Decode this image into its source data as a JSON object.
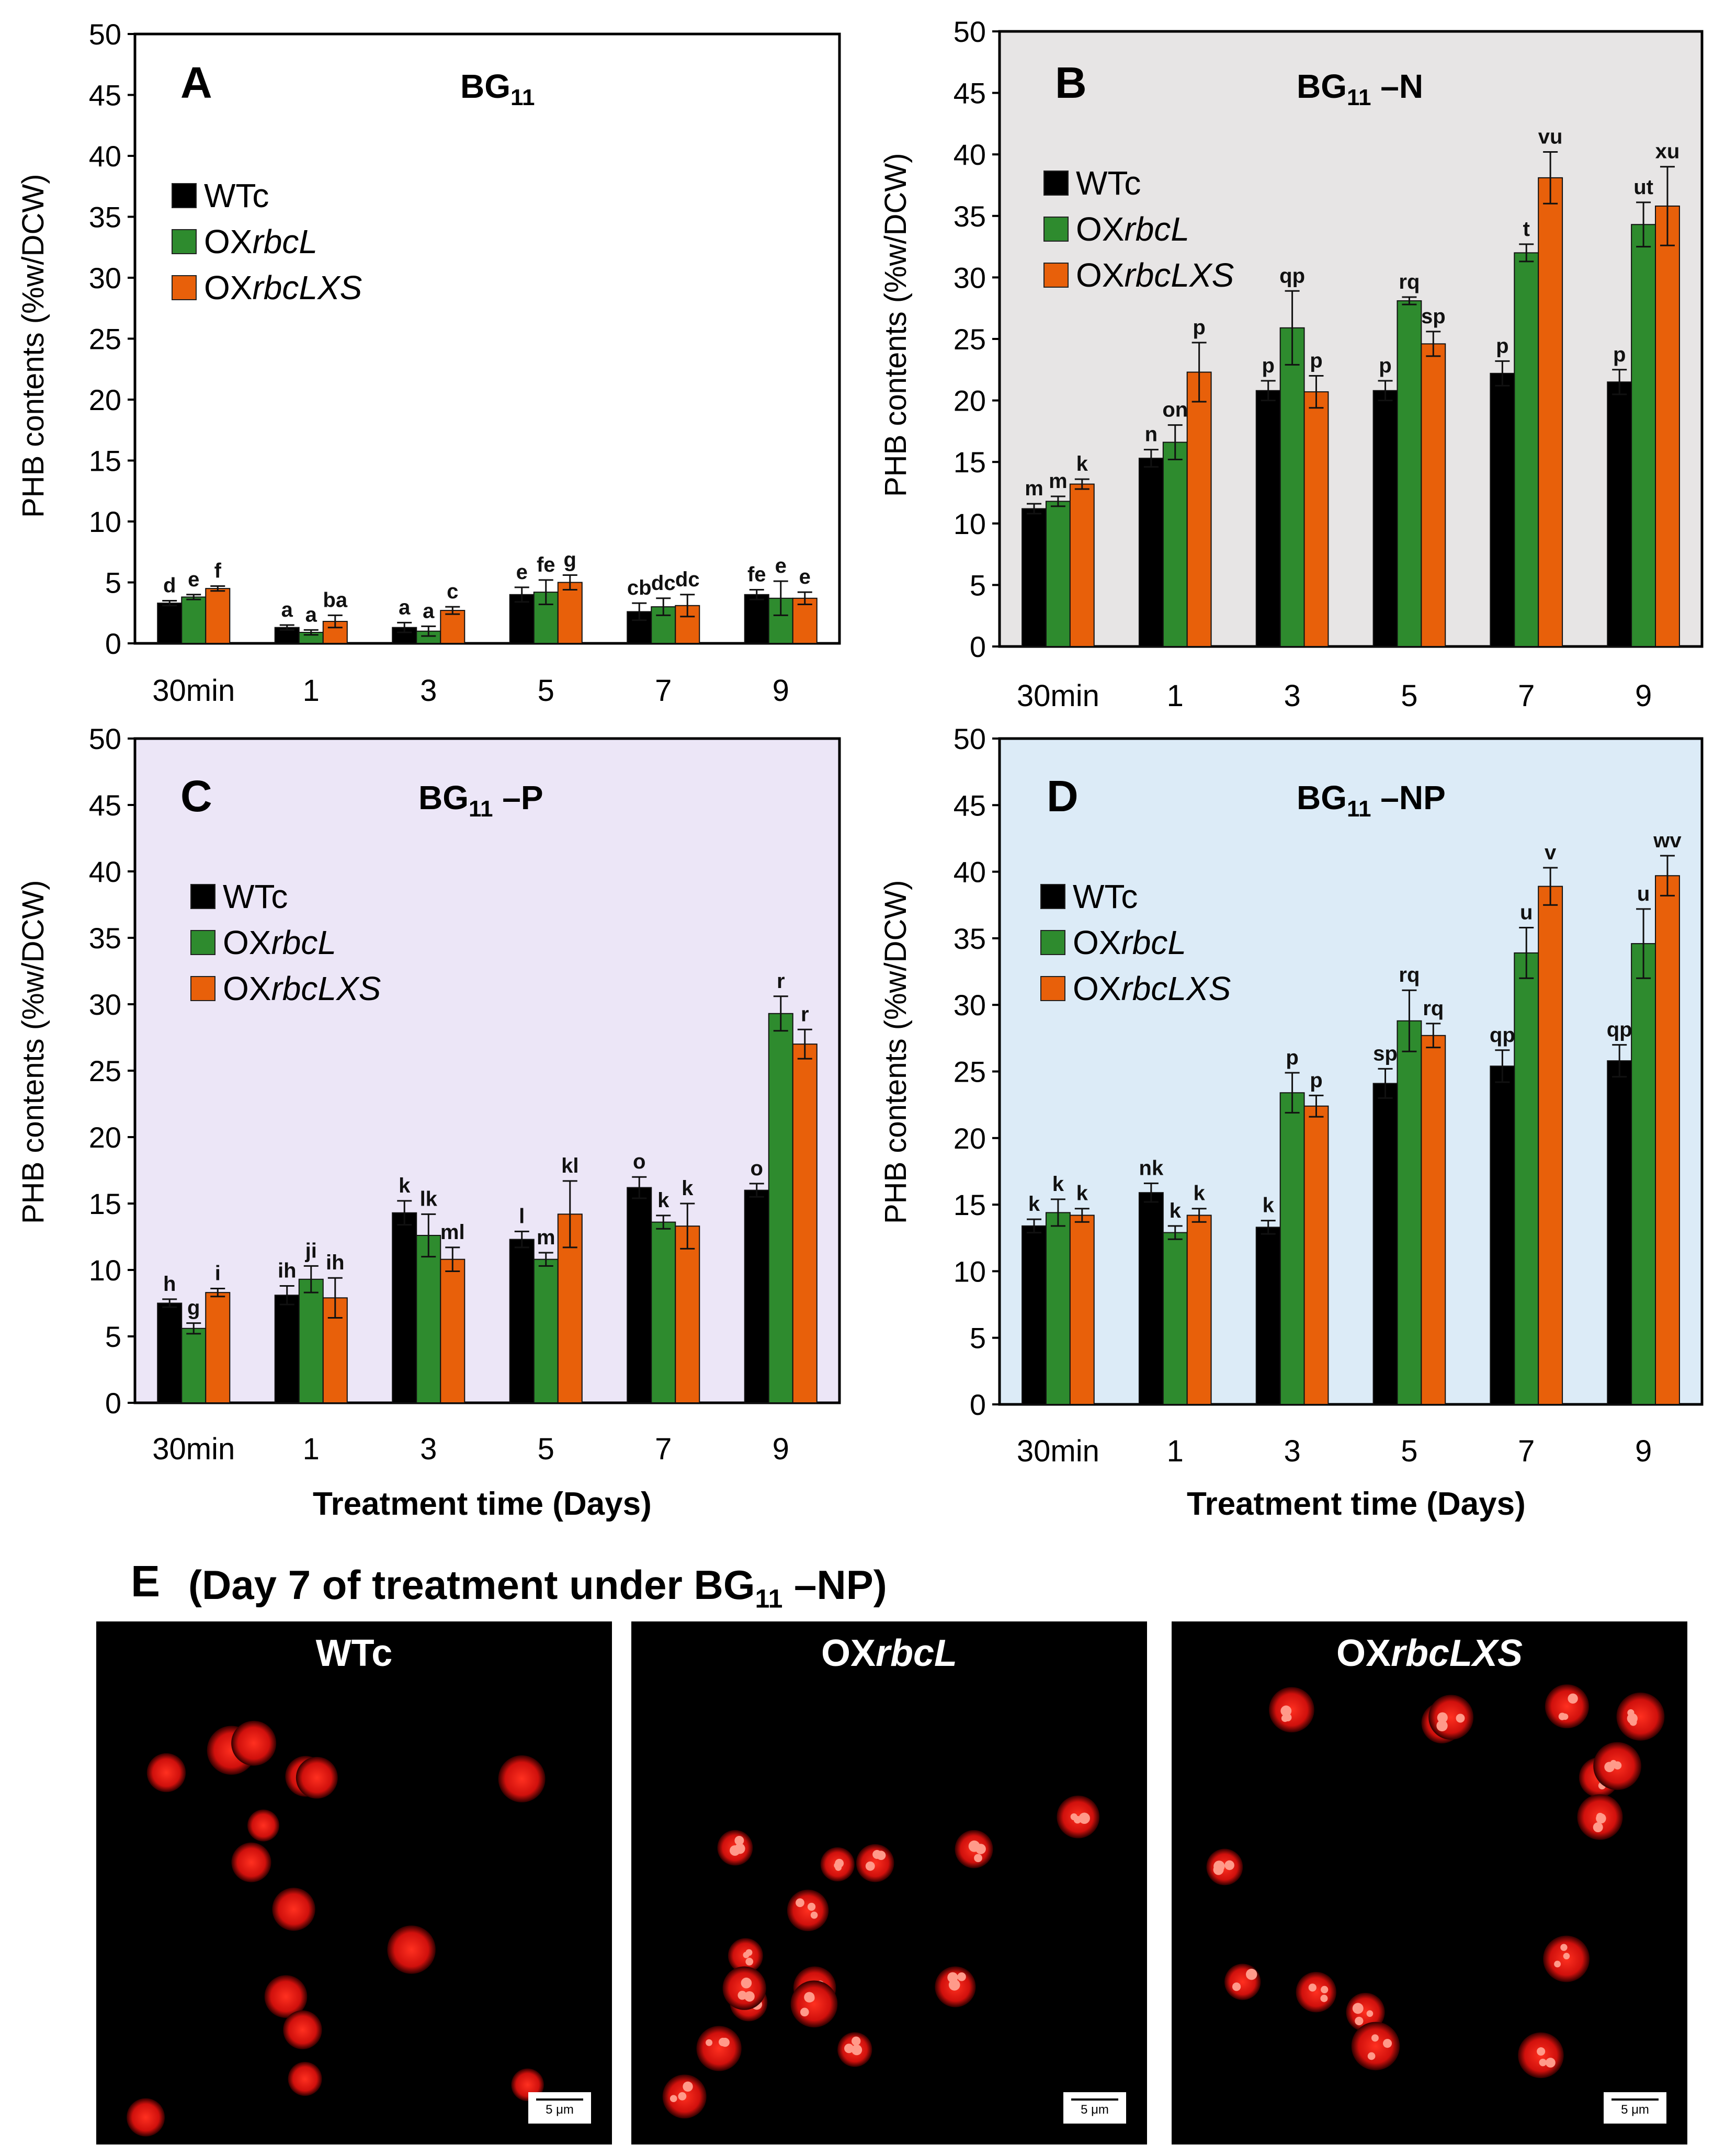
{
  "colors": {
    "WTc": "#000000",
    "OXrbcL": "#2e8b2e",
    "OXrbcLXS": "#e8600a"
  },
  "legend": {
    "wtc": "WTc",
    "oxrbcl_prefix": "OX",
    "oxrbcl_italic": "rbcL",
    "oxrbclxs_prefix": "OX",
    "oxrbclxs_italic": "rbcLXS"
  },
  "common": {
    "ylabel": "PHB contents (%w/DCW)",
    "xlabel": "Treatment time (Days)",
    "categories": [
      "30min",
      "1",
      "3",
      "5",
      "7",
      "9"
    ],
    "yticks": [
      "0",
      "5",
      "10",
      "15",
      "20",
      "25",
      "30",
      "35",
      "40",
      "45",
      "50"
    ]
  },
  "chart_data": [
    {
      "panel": "A",
      "type": "bar",
      "title_main": "BG",
      "title_sub": "11",
      "title_suffix": "",
      "background": "#ffffff",
      "ylim": [
        0,
        50
      ],
      "categories": [
        "30min",
        "1",
        "3",
        "5",
        "7",
        "9"
      ],
      "series": [
        {
          "name": "WTc",
          "values": [
            3.3,
            1.3,
            1.3,
            4.0,
            2.6,
            4.0
          ],
          "errors": [
            0.2,
            0.2,
            0.4,
            0.6,
            0.7,
            0.4
          ],
          "labels": [
            "d",
            "a",
            "a",
            "e",
            "cb",
            "fe"
          ]
        },
        {
          "name": "OXrbcL",
          "values": [
            3.8,
            0.9,
            1.0,
            4.2,
            3.0,
            3.7
          ],
          "errors": [
            0.2,
            0.2,
            0.4,
            1.0,
            0.7,
            1.4
          ],
          "labels": [
            "e",
            "a",
            "a",
            "fe",
            "dc",
            "e"
          ]
        },
        {
          "name": "OXrbcLXS",
          "values": [
            4.5,
            1.8,
            2.7,
            5.0,
            3.1,
            3.7
          ],
          "errors": [
            0.2,
            0.5,
            0.3,
            0.6,
            0.9,
            0.5
          ],
          "labels": [
            "f",
            "ba",
            "c",
            "g",
            "dc",
            "e"
          ]
        }
      ]
    },
    {
      "panel": "B",
      "type": "bar",
      "title_main": "BG",
      "title_sub": "11",
      "title_suffix": " –N",
      "background": "#e7e5e5",
      "ylim": [
        0,
        50
      ],
      "categories": [
        "30min",
        "1",
        "3",
        "5",
        "7",
        "9"
      ],
      "series": [
        {
          "name": "WTc",
          "values": [
            11.2,
            15.3,
            20.8,
            20.8,
            22.2,
            21.5
          ],
          "errors": [
            0.4,
            0.7,
            0.8,
            0.8,
            1.0,
            1.0
          ],
          "labels": [
            "m",
            "n",
            "p",
            "p",
            "p",
            "p"
          ]
        },
        {
          "name": "OXrbcL",
          "values": [
            11.8,
            16.6,
            25.9,
            28.1,
            32.0,
            34.3
          ],
          "errors": [
            0.4,
            1.4,
            3.0,
            0.3,
            0.7,
            1.8
          ],
          "labels": [
            "m",
            "on",
            "qp",
            "rq",
            "t",
            "ut"
          ]
        },
        {
          "name": "OXrbcLXS",
          "values": [
            13.2,
            22.3,
            20.7,
            24.6,
            38.1,
            35.8
          ],
          "errors": [
            0.4,
            2.4,
            1.3,
            1.0,
            2.1,
            3.2
          ],
          "labels": [
            "k",
            "p",
            "p",
            "sp",
            "vu",
            "xu"
          ]
        }
      ]
    },
    {
      "panel": "C",
      "type": "bar",
      "title_main": "BG",
      "title_sub": "11",
      "title_suffix": " –P",
      "background": "#ece6f7",
      "ylim": [
        0,
        50
      ],
      "categories": [
        "30min",
        "1",
        "3",
        "5",
        "7",
        "9"
      ],
      "series": [
        {
          "name": "WTc",
          "values": [
            7.5,
            8.1,
            14.3,
            12.3,
            16.2,
            16.0
          ],
          "errors": [
            0.3,
            0.7,
            0.9,
            0.6,
            0.8,
            0.5
          ],
          "labels": [
            "h",
            "ih",
            "k",
            "l",
            "o",
            "o"
          ]
        },
        {
          "name": "OXrbcL",
          "values": [
            5.6,
            9.3,
            12.6,
            10.8,
            13.6,
            29.3
          ],
          "errors": [
            0.4,
            1.0,
            1.6,
            0.5,
            0.5,
            1.3
          ],
          "labels": [
            "g",
            "ji",
            "lk",
            "m",
            "k",
            "r"
          ]
        },
        {
          "name": "OXrbcLXS",
          "values": [
            8.3,
            7.9,
            10.8,
            14.2,
            13.3,
            27.0
          ],
          "errors": [
            0.3,
            1.5,
            0.9,
            2.5,
            1.7,
            1.1
          ],
          "labels": [
            "i",
            "ih",
            "ml",
            "kl",
            "k",
            "r"
          ]
        }
      ]
    },
    {
      "panel": "D",
      "type": "bar",
      "title_main": "BG",
      "title_sub": "11",
      "title_suffix": " –NP",
      "background": "#dcebf7",
      "ylim": [
        0,
        50
      ],
      "categories": [
        "30min",
        "1",
        "3",
        "5",
        "7",
        "9"
      ],
      "series": [
        {
          "name": "WTc",
          "values": [
            13.4,
            15.9,
            13.3,
            24.1,
            25.4,
            25.8
          ],
          "errors": [
            0.5,
            0.7,
            0.5,
            1.1,
            1.2,
            1.2
          ],
          "labels": [
            "k",
            "nk",
            "k",
            "sp",
            "qp",
            "qp"
          ]
        },
        {
          "name": "OXrbcL",
          "values": [
            14.4,
            12.9,
            23.4,
            28.8,
            33.9,
            34.6
          ],
          "errors": [
            1.0,
            0.5,
            1.5,
            2.3,
            1.9,
            2.6
          ],
          "labels": [
            "k",
            "k",
            "p",
            "rq",
            "u",
            "u"
          ]
        },
        {
          "name": "OXrbcLXS",
          "values": [
            14.2,
            14.2,
            22.4,
            27.7,
            38.9,
            39.7
          ],
          "errors": [
            0.5,
            0.5,
            0.8,
            0.9,
            1.4,
            1.5
          ],
          "labels": [
            "k",
            "k",
            "p",
            "rq",
            "v",
            "wv"
          ]
        }
      ]
    }
  ],
  "photos": {
    "letter": "E",
    "title_prefix": "(Day 7 of treatment under BG",
    "title_sub": "11",
    "title_suffix": " –NP)",
    "scale": "5 μm",
    "panels": [
      {
        "prefix": "WTc",
        "italic": ""
      },
      {
        "prefix": "OX",
        "italic": "rbcL"
      },
      {
        "prefix": "OX",
        "italic": "rbcLXS"
      }
    ]
  }
}
